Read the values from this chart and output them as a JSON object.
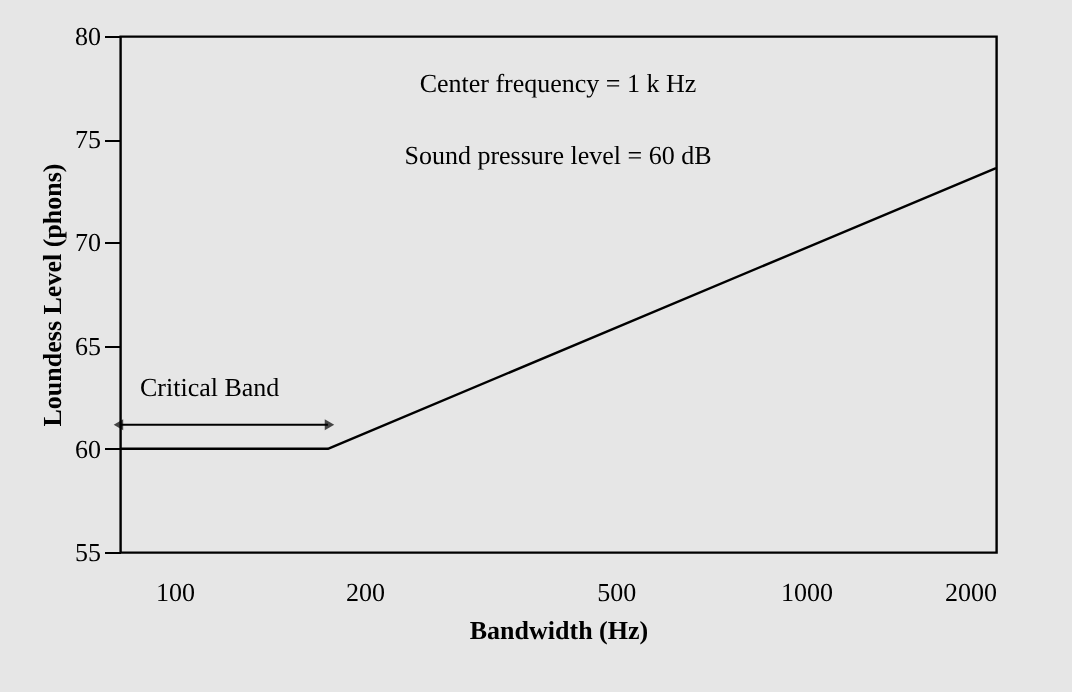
{
  "chart_data": {
    "type": "line",
    "xlabel": "Bandwidth (Hz)",
    "ylabel": "Loundess Level (phons)",
    "x": [
      82,
      175,
      2000
    ],
    "series": [
      {
        "color": "#000000",
        "values": [
          60,
          60,
          73.6
        ]
      }
    ],
    "xlim": [
      82,
      2000
    ],
    "xticks": [
      100,
      200,
      500,
      1000,
      2000
    ],
    "log": "x",
    "ylim": [
      55,
      80
    ],
    "yticks": [
      55,
      60,
      65,
      70,
      75,
      80
    ],
    "annotations": [
      "Center frequency = 1 k Hz",
      "Sound pressure level = 60 dB",
      "Critical Band"
    ],
    "grid": false,
    "marker": "none",
    "line_style": "solid"
  }
}
